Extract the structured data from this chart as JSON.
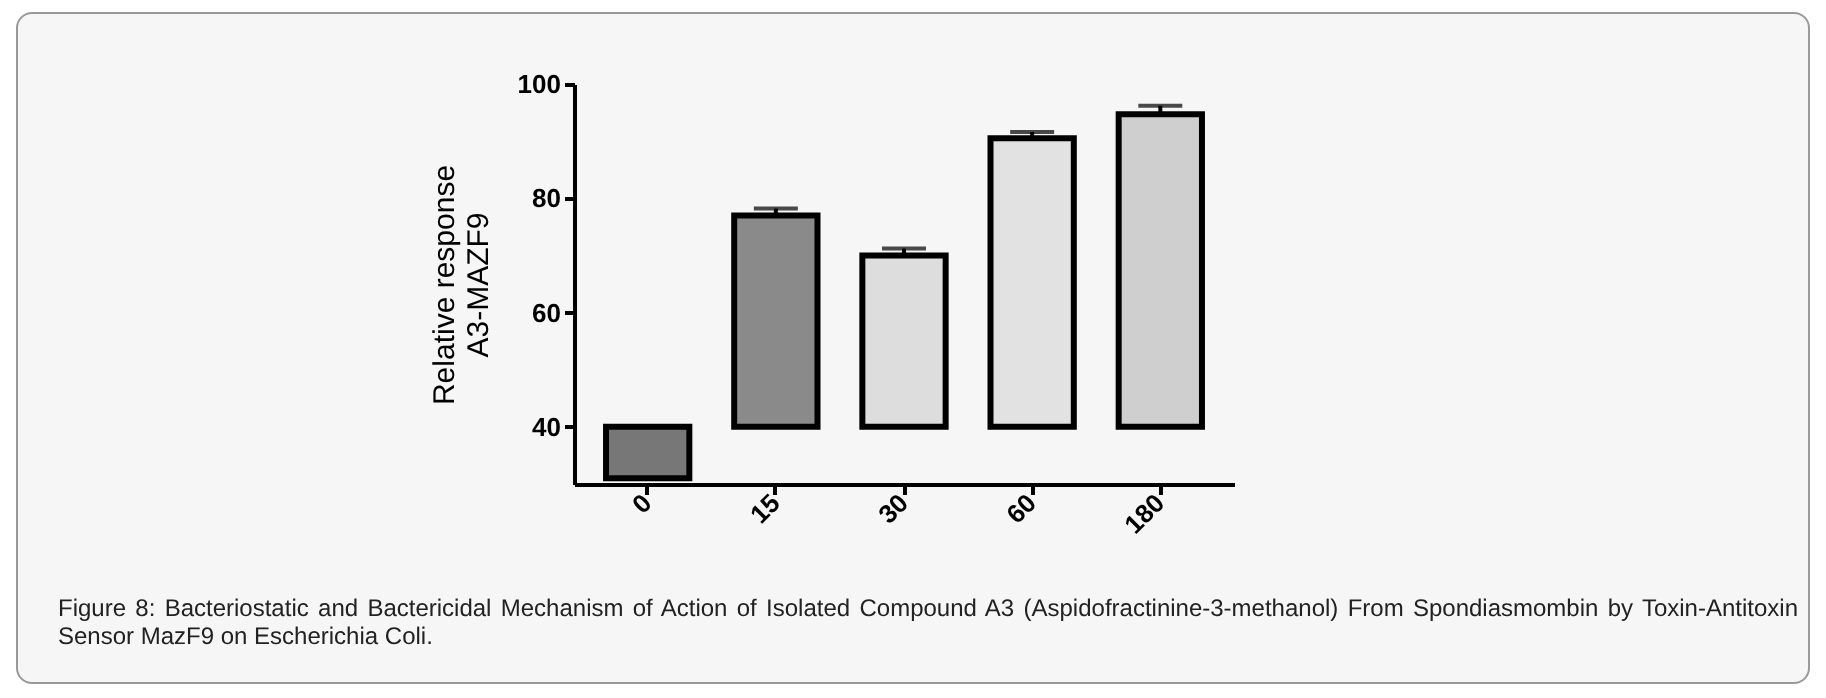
{
  "chart_data": {
    "type": "bar",
    "ylabel": "Relative response\nA3-MAZF9",
    "categories": [
      "0",
      "15",
      "30",
      "60",
      "180"
    ],
    "base": [
      40,
      40,
      40,
      40,
      40
    ],
    "values": [
      -9,
      37,
      30,
      50.5,
      54.7
    ],
    "errors": [
      null,
      1.2,
      1.2,
      1.1,
      1.5
    ],
    "colors": [
      "#777777",
      "#8a8a8a",
      "#dddddd",
      "#e2e2e2",
      "#cfcfcf"
    ],
    "ylim": [
      30,
      100
    ],
    "yticks": [
      40,
      60,
      80,
      100
    ],
    "annotations": [
      "Figure 8: Bacteriostatic and Bactericidal Mechanism of Action of Isolated Compound A3 (Aspidofractinine-3-methanol) From Spondiasmombin by Toxin-Antitoxin Sensor MazF9 on Escherichia Coli."
    ]
  }
}
